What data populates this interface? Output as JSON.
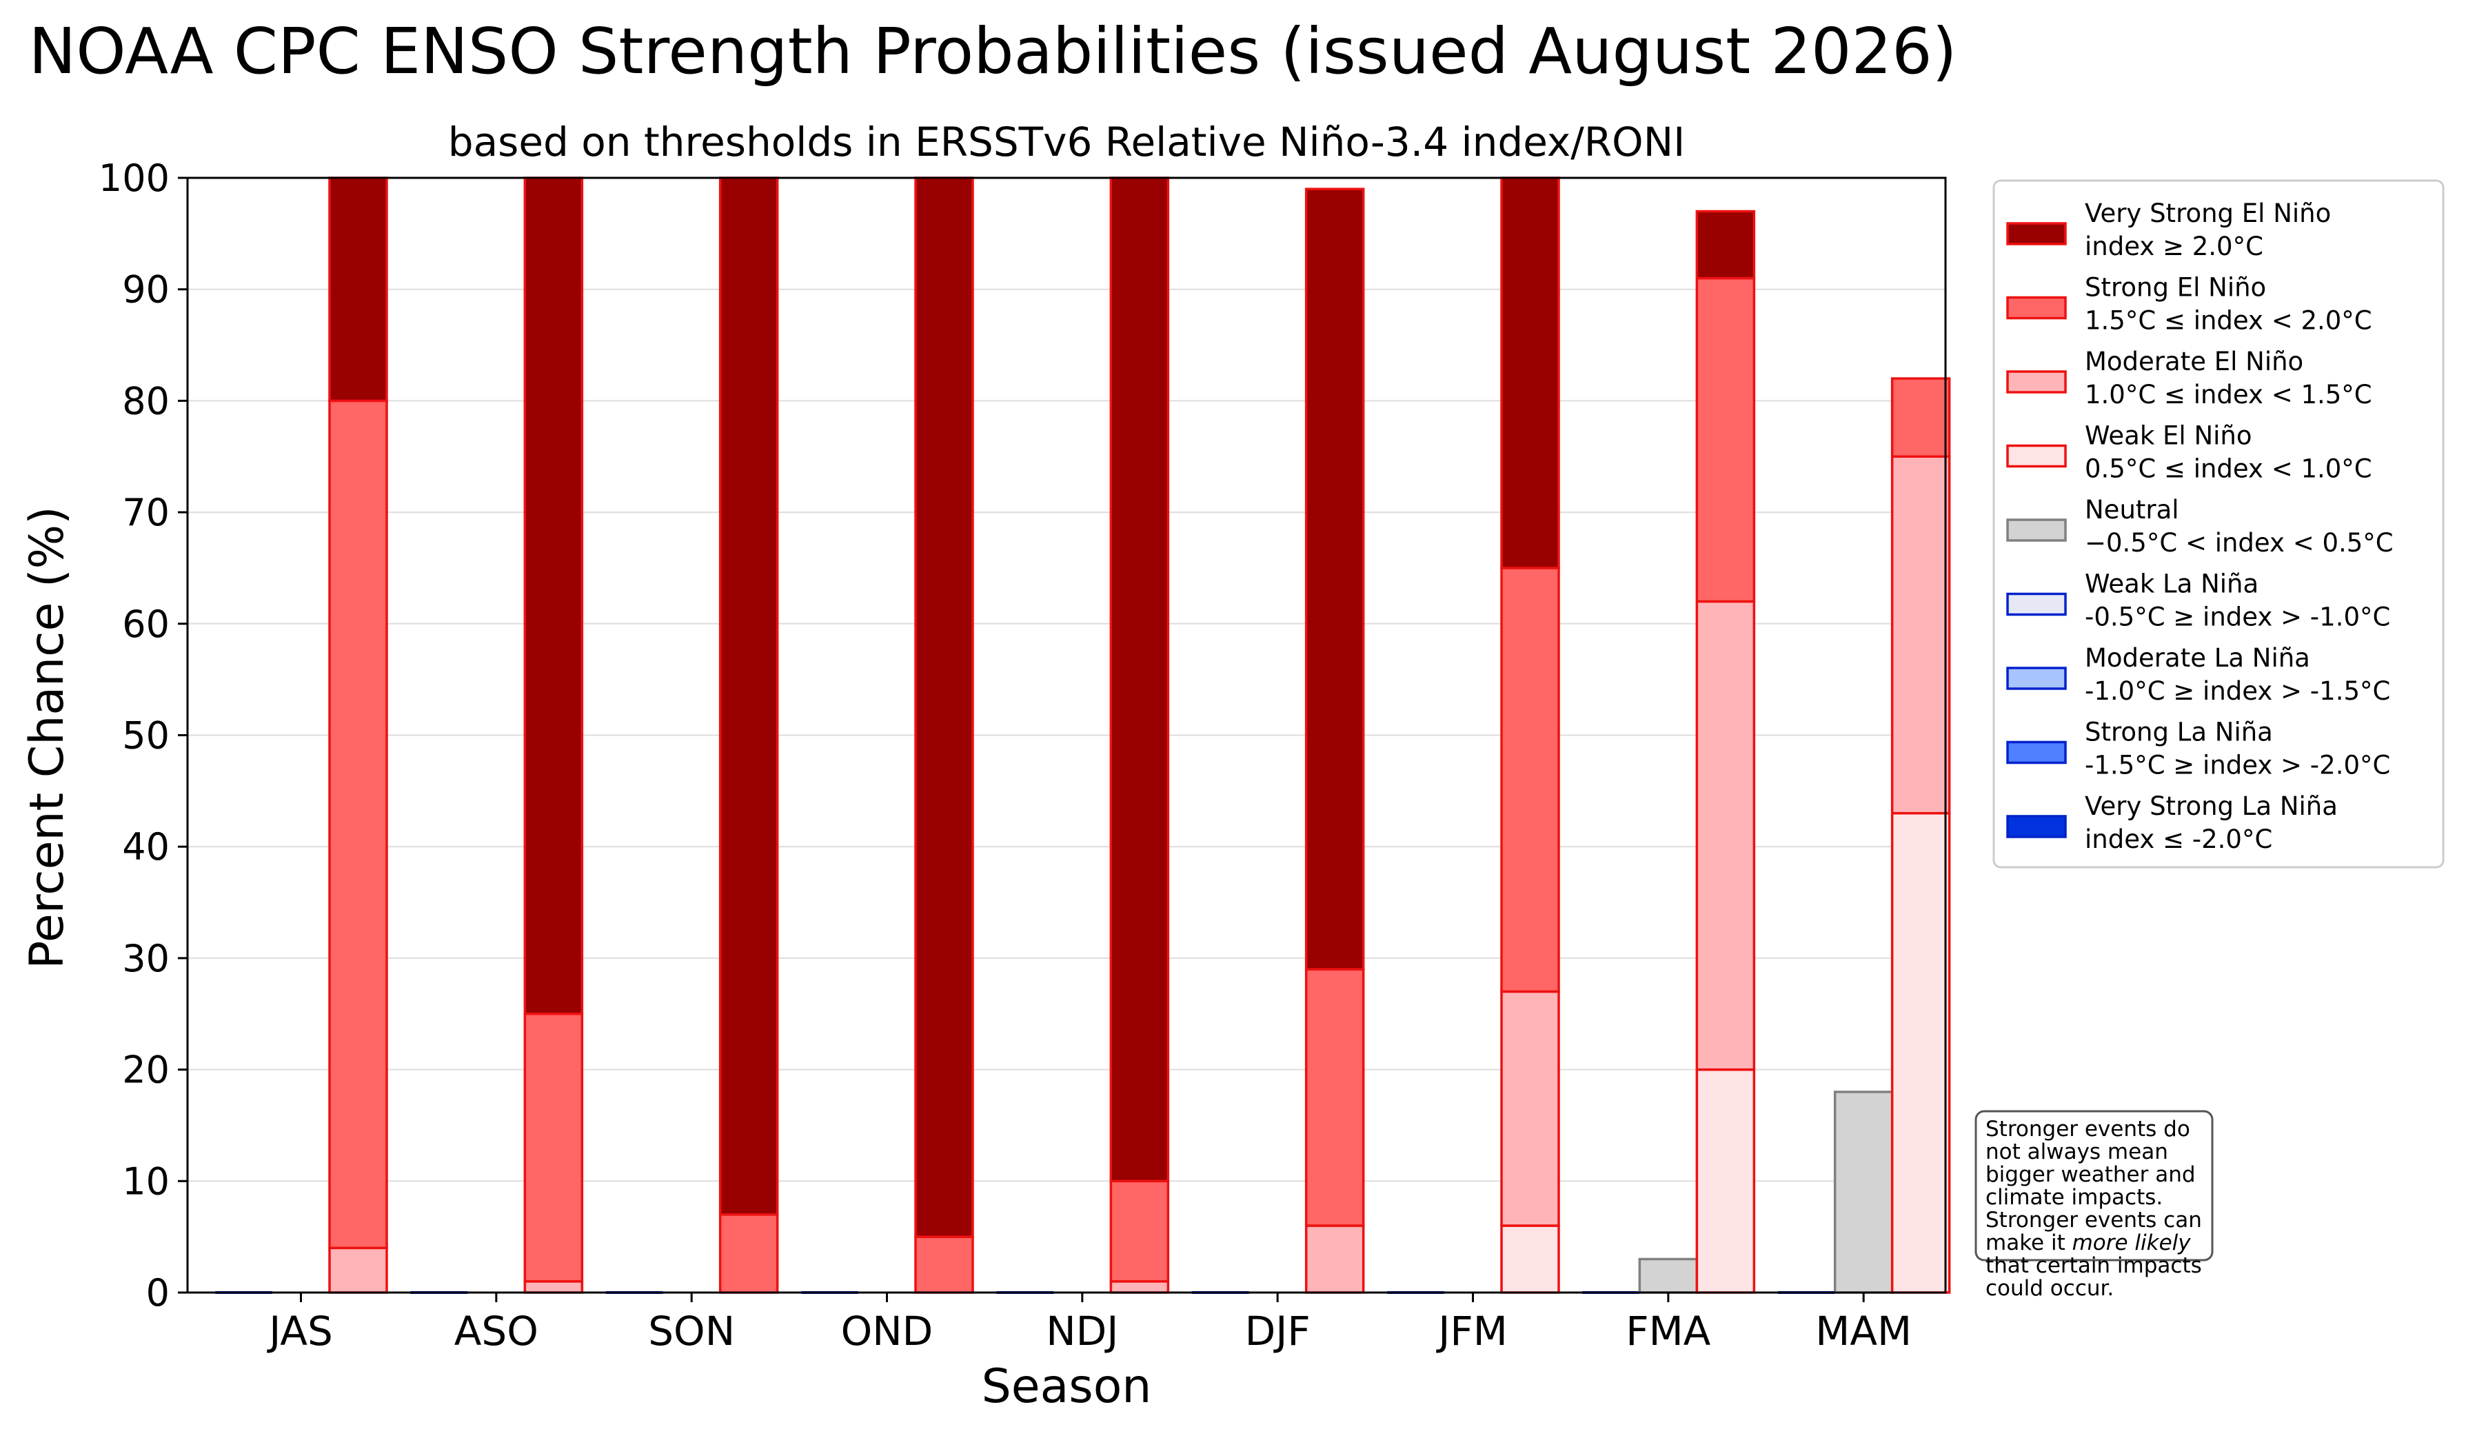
{
  "chart_data": {
    "type": "bar",
    "title": "NOAA CPC ENSO Strength Probabilities (issued August 2026)",
    "subtitle": "based on thresholds in ERSSTv6 Relative Niño-3.4 index/RONI",
    "xlabel": "Season",
    "ylabel": "Percent Chance (%)",
    "ylim": [
      0,
      100
    ],
    "yticks": [
      "0",
      "10",
      "20",
      "30",
      "40",
      "50",
      "60",
      "70",
      "80",
      "90",
      "100"
    ],
    "grid": "horizontal",
    "legend_position": "right",
    "categories": [
      "JAS",
      "ASO",
      "SON",
      "OND",
      "NDJ",
      "DJF",
      "JFM",
      "FMA",
      "MAM"
    ],
    "la_nina_series": [
      {
        "name": "Weak La Niña",
        "range": "-0.5°C ≥ index > -1.0°C",
        "fill": "#e6e8f6",
        "edge": "#0022cc",
        "values": [
          0,
          0,
          0,
          0,
          0,
          0,
          0,
          0,
          0
        ]
      },
      {
        "name": "Moderate La Niña",
        "range": "-1.0°C ≥ index > -1.5°C",
        "fill": "#a8c4ff",
        "edge": "#0022cc",
        "values": [
          0,
          0,
          0,
          0,
          0,
          0,
          0,
          0,
          0
        ]
      },
      {
        "name": "Strong La Niña",
        "range": "-1.5°C ≥ index > -2.0°C",
        "fill": "#4f80ff",
        "edge": "#0022cc",
        "values": [
          0,
          0,
          0,
          0,
          0,
          0,
          0,
          0,
          0
        ]
      },
      {
        "name": "Very Strong La Niña",
        "range": "index ≤ -2.0°C",
        "fill": "#0033dd",
        "edge": "#0022cc",
        "values": [
          0,
          0,
          0,
          0,
          0,
          0,
          0,
          0,
          0
        ]
      }
    ],
    "neutral_series": {
      "name": "Neutral",
      "range": "−0.5°C < index < 0.5°C",
      "fill": "#d3d3d3",
      "edge": "#808080",
      "values": [
        0,
        0,
        0,
        0,
        0,
        0,
        0,
        3,
        18
      ]
    },
    "el_nino_series": [
      {
        "name": "Weak El Niño",
        "range": "0.5°C ≤ index < 1.0°C",
        "fill": "#ffe4e6",
        "edge": "#ee1111",
        "values": [
          0,
          0,
          0,
          0,
          0,
          0,
          6,
          20,
          43
        ]
      },
      {
        "name": "Moderate El Niño",
        "range": "1.0°C ≤ index < 1.5°C",
        "fill": "#ffb4b8",
        "edge": "#ee1111",
        "values": [
          4,
          1,
          0,
          0,
          1,
          6,
          21,
          42,
          32
        ]
      },
      {
        "name": "Strong El Niño",
        "range": "1.5°C ≤ index < 2.0°C",
        "fill": "#ff6666",
        "edge": "#ee1111",
        "values": [
          76,
          24,
          7,
          5,
          9,
          23,
          38,
          29,
          7
        ]
      },
      {
        "name": "Very Strong El Niño",
        "range": "index ≥ 2.0°C",
        "fill": "#990000",
        "edge": "#ee1111",
        "values": [
          20,
          75,
          93,
          95,
          90,
          70,
          35,
          6,
          0
        ]
      }
    ],
    "annotation": "Stronger events do not always mean bigger weather and climate impacts. Stronger events can make it more likely that certain impacts could occur."
  },
  "note": {
    "before": "Stronger events do not always mean bigger weather and climate impacts. Stronger events can make it ",
    "emphasis": "more likely",
    "after": " that certain impacts could occur."
  }
}
